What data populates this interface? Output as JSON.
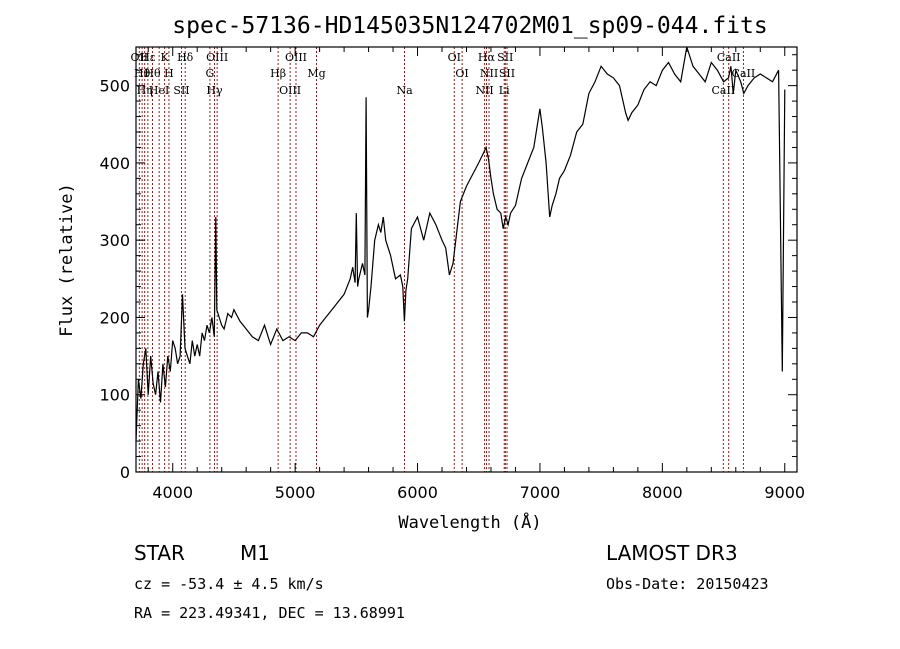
{
  "chart_data": {
    "type": "line",
    "title": "spec-57136-HD145035N124702M01_sp09-044.fits",
    "xlabel": "Wavelength (Å)",
    "ylabel": "Flux (relative)",
    "xlim": [
      3700,
      9100
    ],
    "ylim": [
      0,
      550
    ],
    "xticks": [
      4000,
      5000,
      6000,
      7000,
      8000,
      9000
    ],
    "yticks": [
      0,
      100,
      200,
      300,
      400,
      500
    ],
    "grid": false,
    "line_color": "#000000",
    "marker_color": "#8b0000",
    "series": [
      {
        "x": [
          3700,
          3720,
          3740,
          3760,
          3780,
          3800,
          3820,
          3840,
          3860,
          3880,
          3900,
          3920,
          3940,
          3960,
          3980,
          4000,
          4020,
          4040,
          4060,
          4080,
          4100,
          4120,
          4140,
          4160,
          4180,
          4200,
          4220,
          4240,
          4260,
          4280,
          4300,
          4320,
          4340,
          4352,
          4360,
          4380,
          4400,
          4420,
          4450,
          4480,
          4500,
          4550,
          4600,
          4650,
          4700,
          4750,
          4800,
          4850,
          4900,
          4950,
          5000,
          5050,
          5100,
          5150,
          5200,
          5250,
          5300,
          5350,
          5400,
          5450,
          5470,
          5490,
          5500,
          5510,
          5520,
          5550,
          5570,
          5580,
          5590,
          5600,
          5620,
          5650,
          5680,
          5700,
          5720,
          5740,
          5780,
          5820,
          5860,
          5880,
          5893,
          5905,
          5920,
          5950,
          6000,
          6050,
          6100,
          6150,
          6200,
          6230,
          6260,
          6290,
          6320,
          6350,
          6400,
          6450,
          6500,
          6530,
          6560,
          6580,
          6600,
          6620,
          6650,
          6680,
          6700,
          6720,
          6740,
          6760,
          6800,
          6850,
          6900,
          6950,
          7000,
          7020,
          7050,
          7080,
          7100,
          7130,
          7160,
          7200,
          7250,
          7300,
          7350,
          7400,
          7450,
          7500,
          7550,
          7600,
          7650,
          7700,
          7720,
          7750,
          7800,
          7850,
          7900,
          7950,
          8000,
          8050,
          8100,
          8150,
          8200,
          8250,
          8300,
          8350,
          8400,
          8450,
          8500,
          8540,
          8560,
          8580,
          8600,
          8640,
          8665,
          8700,
          8750,
          8800,
          8850,
          8900,
          8950,
          8980,
          9000
        ],
        "y": [
          40,
          120,
          95,
          140,
          160,
          100,
          150,
          115,
          100,
          130,
          90,
          140,
          110,
          150,
          130,
          170,
          160,
          140,
          150,
          230,
          160,
          150,
          140,
          170,
          150,
          165,
          150,
          180,
          170,
          190,
          180,
          200,
          175,
          330,
          210,
          200,
          190,
          185,
          205,
          200,
          210,
          195,
          185,
          175,
          170,
          190,
          165,
          185,
          170,
          175,
          170,
          180,
          180,
          175,
          190,
          200,
          210,
          220,
          230,
          250,
          265,
          245,
          335,
          240,
          250,
          270,
          255,
          485,
          200,
          210,
          240,
          300,
          320,
          310,
          330,
          300,
          280,
          250,
          255,
          240,
          195,
          235,
          250,
          315,
          330,
          300,
          335,
          320,
          300,
          290,
          255,
          270,
          310,
          350,
          370,
          385,
          400,
          410,
          420,
          405,
          380,
          360,
          340,
          335,
          315,
          330,
          320,
          335,
          345,
          380,
          400,
          420,
          470,
          445,
          400,
          330,
          345,
          360,
          380,
          390,
          410,
          440,
          450,
          490,
          505,
          525,
          515,
          510,
          500,
          465,
          455,
          465,
          475,
          495,
          505,
          500,
          520,
          530,
          515,
          505,
          550,
          525,
          515,
          505,
          530,
          520,
          505,
          510,
          525,
          490,
          520,
          505,
          490,
          500,
          510,
          515,
          510,
          505,
          520,
          130,
          495
        ]
      }
    ],
    "emission_lines": [
      {
        "wave": 3727,
        "label": "OII"
      },
      {
        "wave": 3750,
        "label": "Hθ"
      },
      {
        "wave": 3771,
        "label": "Hη"
      },
      {
        "wave": 3797,
        "label": "Hε"
      },
      {
        "wave": 3835,
        "label": "Hθ"
      },
      {
        "wave": 3889,
        "label": "HeI"
      },
      {
        "wave": 3934,
        "label": "K"
      },
      {
        "wave": 3969,
        "label": "H"
      },
      {
        "wave": 4072,
        "label": "SII"
      },
      {
        "wave": 4102,
        "label": "Hδ"
      },
      {
        "wave": 4304,
        "label": "G"
      },
      {
        "wave": 4341,
        "label": "Hγ"
      },
      {
        "wave": 4363,
        "label": "OIII"
      },
      {
        "wave": 4861,
        "label": "Hβ"
      },
      {
        "wave": 4959,
        "label": "OIII"
      },
      {
        "wave": 5007,
        "label": "OIII"
      },
      {
        "wave": 5175,
        "label": "Mg"
      },
      {
        "wave": 5894,
        "label": "Na"
      },
      {
        "wave": 6300,
        "label": "OI"
      },
      {
        "wave": 6364,
        "label": "OI"
      },
      {
        "wave": 6548,
        "label": "NII"
      },
      {
        "wave": 6563,
        "label": "Hα"
      },
      {
        "wave": 6584,
        "label": "NII"
      },
      {
        "wave": 6708,
        "label": "Li"
      },
      {
        "wave": 6717,
        "label": "SII"
      },
      {
        "wave": 6731,
        "label": "SII"
      },
      {
        "wave": 8498,
        "label": "CaII"
      },
      {
        "wave": 8542,
        "label": "CaII"
      },
      {
        "wave": 8662,
        "label": "CaII"
      }
    ]
  },
  "info": {
    "class": "STAR",
    "subclass": "M1",
    "survey": "LAMOST DR3",
    "cz": "cz = -53.4 ± 4.5 km/s",
    "obs_date": "Obs-Date: 20150423",
    "coords": "RA = 223.49341, DEC =  13.68991"
  }
}
